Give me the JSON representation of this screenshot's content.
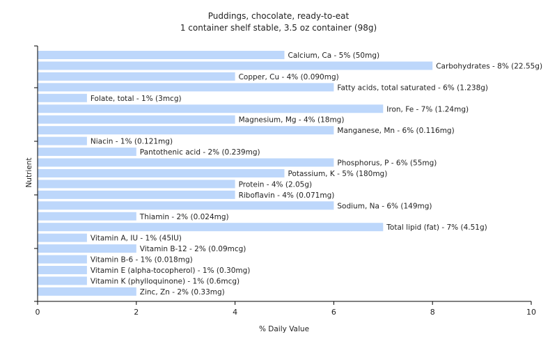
{
  "chart_data": {
    "type": "bar",
    "orientation": "horizontal",
    "title": "Puddings, chocolate, ready-to-eat",
    "subtitle": "1 container shelf stable, 3.5 oz container (98g)",
    "xlabel": "% Daily Value",
    "ylabel": "Nutrient",
    "xlim": [
      0,
      10
    ],
    "xticks": [
      "0",
      "2",
      "4",
      "6",
      "8",
      "10"
    ],
    "grid": false,
    "bar_color": "#bdd7fb",
    "categories": [
      "Calcium, Ca",
      "Carbohydrates",
      "Copper, Cu",
      "Fatty acids, total saturated",
      "Folate, total",
      "Iron, Fe",
      "Magnesium, Mg",
      "Manganese, Mn",
      "Niacin",
      "Pantothenic acid",
      "Phosphorus, P",
      "Potassium, K",
      "Protein",
      "Riboflavin",
      "Sodium, Na",
      "Thiamin",
      "Total lipid (fat)",
      "Vitamin A, IU",
      "Vitamin B-12",
      "Vitamin B-6",
      "Vitamin E (alpha-tocopherol)",
      "Vitamin K (phylloquinone)",
      "Zinc, Zn"
    ],
    "values": [
      5,
      8,
      4,
      6,
      1,
      7,
      4,
      6,
      1,
      2,
      6,
      5,
      4,
      4,
      6,
      2,
      7,
      1,
      2,
      1,
      1,
      1,
      2
    ],
    "labels": [
      "Calcium, Ca - 5% (50mg)",
      "Carbohydrates - 8% (22.55g)",
      "Copper, Cu - 4% (0.090mg)",
      "Fatty acids, total saturated - 6% (1.238g)",
      "Folate, total - 1% (3mcg)",
      "Iron, Fe - 7% (1.24mg)",
      "Magnesium, Mg - 4% (18mg)",
      "Manganese, Mn - 6% (0.116mg)",
      "Niacin - 1% (0.121mg)",
      "Pantothenic acid - 2% (0.239mg)",
      "Phosphorus, P - 6% (55mg)",
      "Potassium, K - 5% (180mg)",
      "Protein - 4% (2.05g)",
      "Riboflavin - 4% (0.071mg)",
      "Sodium, Na - 6% (149mg)",
      "Thiamin - 2% (0.024mg)",
      "Total lipid (fat) - 7% (4.51g)",
      "Vitamin A, IU - 1% (45IU)",
      "Vitamin B-12 - 2% (0.09mcg)",
      "Vitamin B-6 - 1% (0.018mg)",
      "Vitamin E (alpha-tocopherol) - 1% (0.30mg)",
      "Vitamin K (phylloquinone) - 1% (0.6mcg)",
      "Zinc, Zn - 2% (0.33mg)"
    ]
  }
}
